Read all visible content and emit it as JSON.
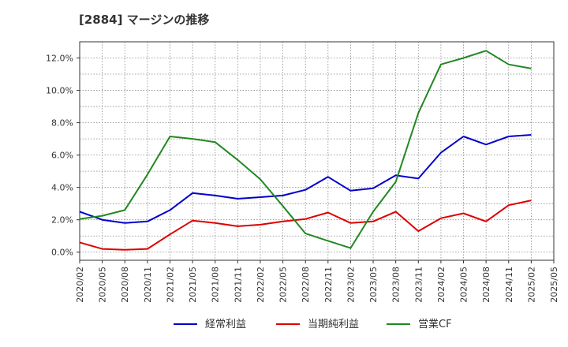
{
  "chart_data": {
    "type": "line",
    "title": "[2884]  マージンの推移",
    "xlabel": "",
    "ylabel": "",
    "x": [
      "2020/02",
      "2020/05",
      "2020/08",
      "2020/11",
      "2021/02",
      "2021/05",
      "2021/08",
      "2021/11",
      "2022/02",
      "2022/05",
      "2022/08",
      "2022/11",
      "2023/02",
      "2023/05",
      "2023/08",
      "2023/11",
      "2024/02",
      "2024/05",
      "2024/08",
      "2024/11",
      "2025/02",
      "2025/05"
    ],
    "ylim": [
      -0.5,
      13.0
    ],
    "yticks": [
      0,
      2,
      4,
      6,
      8,
      10,
      12
    ],
    "ytick_labels": [
      "0.0%",
      "2.0%",
      "4.0%",
      "6.0%",
      "8.0%",
      "10.0%",
      "12.0%"
    ],
    "grid": true,
    "legend_position": "bottom",
    "series": [
      {
        "name": "経常利益",
        "color": "#0000cc",
        "values": [
          2.5,
          2.0,
          1.8,
          1.9,
          2.6,
          3.65,
          3.5,
          3.3,
          3.4,
          3.5,
          3.85,
          4.65,
          3.8,
          3.95,
          4.75,
          4.55,
          6.15,
          7.15,
          6.65,
          7.15,
          7.25,
          null
        ]
      },
      {
        "name": "当期純利益",
        "color": "#dd0000",
        "values": [
          0.6,
          0.2,
          0.15,
          0.2,
          1.1,
          1.95,
          1.8,
          1.6,
          1.7,
          1.9,
          2.05,
          2.45,
          1.8,
          1.9,
          2.5,
          1.3,
          2.1,
          2.4,
          1.9,
          2.9,
          3.2,
          null
        ]
      },
      {
        "name": "営業CF",
        "color": "#228822",
        "values": [
          2.05,
          2.25,
          2.6,
          4.8,
          7.15,
          7.0,
          6.8,
          5.7,
          4.5,
          2.85,
          1.15,
          0.7,
          0.25,
          2.5,
          4.35,
          8.6,
          11.6,
          12.0,
          12.45,
          11.6,
          11.35,
          null
        ]
      }
    ]
  }
}
